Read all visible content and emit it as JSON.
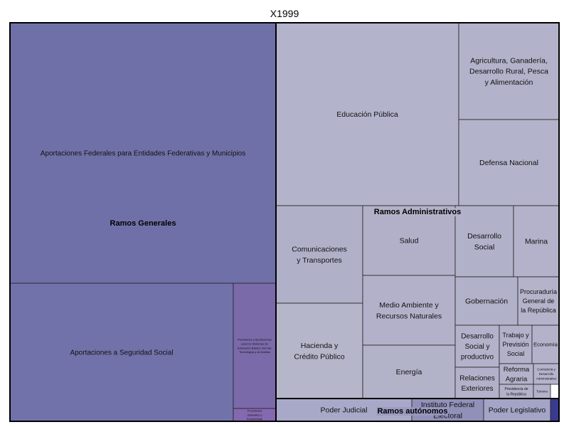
{
  "chart_data": {
    "type": "treemap",
    "title": "X1999",
    "groups": [
      {
        "name": "Ramos Generales",
        "color": "#7070a8",
        "children": [
          {
            "name": "Aportaciones Federales para Entidades Federativas y Municipios",
            "color": "#7070a8",
            "value": 56.7
          },
          {
            "name": "Aportaciones a Seguridad Social",
            "color": "#7272aa",
            "value": 15.1
          },
          {
            "name": "Previsiones y Aportaciones para los Sistemas de Educación Básica, Normal, Tecnológica y de Adultos",
            "color": "#7a6aaa",
            "value": 4.8
          },
          {
            "name": "Provisiones Salariales y Económicas",
            "color": "#8468b0",
            "value": 0.3
          }
        ]
      },
      {
        "name": "Ramos Administrativos",
        "color": "#b3b3c9",
        "children": [
          {
            "name": "Educación Pública",
            "color": "#b3b3cb",
            "value": 11.1
          },
          {
            "name": "Agricultura, Ganadería, Desarrollo Rural, Pesca y Alimentación",
            "color": "#b2b2ca",
            "value": 4.7
          },
          {
            "name": "Defensa Nacional",
            "color": "#b3b3cb",
            "value": 4.2
          },
          {
            "name": "Comunicaciones y Transportes",
            "color": "#b0b0c8",
            "value": 3.2
          },
          {
            "name": "Hacienda y Crédito Público",
            "color": "#b6b6ca",
            "value": 3.2
          },
          {
            "name": "Salud",
            "color": "#b2b0c8",
            "value": 2.5
          },
          {
            "name": "Medio Ambiente y Recursos Naturales",
            "color": "#b3b1c9",
            "value": 2.3
          },
          {
            "name": "Energía",
            "color": "#b2b2c9",
            "value": 2.0
          },
          {
            "name": "Desarrollo Social",
            "color": "#b1b1c9",
            "value": 1.5
          },
          {
            "name": "Marina",
            "color": "#b4b2ca",
            "value": 1.2
          },
          {
            "name": "Gobernación",
            "color": "#b1b1c9",
            "value": 1.0
          },
          {
            "name": "Procuraduría General de la República",
            "color": "#b5b3cb",
            "value": 0.7
          },
          {
            "name": "Desarrollo Social y productivo",
            "color": "#b2b2ca",
            "value": 0.6
          },
          {
            "name": "Trabajo y Previsión Social",
            "color": "#b3b1ca",
            "value": 0.4
          },
          {
            "name": "Economía",
            "color": "#b4b2ca",
            "value": 0.4
          },
          {
            "name": "Relaciones Exteriores",
            "color": "#b1b1c9",
            "value": 0.5
          },
          {
            "name": "Reforma Agraria",
            "color": "#b4b2ca",
            "value": 0.3
          },
          {
            "name": "Contraloría y Desarrollo Administrativo",
            "color": "#b5b3cb",
            "value": 0.2
          },
          {
            "name": "Presidencia de la República",
            "color": "#b2b2ca",
            "value": 0.1
          },
          {
            "name": "Turismo",
            "color": "#b4b2ca",
            "value": 0.1
          }
        ]
      },
      {
        "name": "Ramos autónomos",
        "color": "#9a9ac0",
        "children": [
          {
            "name": "Poder Judicial",
            "color": "#a8a8c8",
            "value": 1.3
          },
          {
            "name": "Instituto Federal Electoral",
            "color": "#9090b8",
            "value": 0.7
          },
          {
            "name": "Poder Legislativo",
            "color": "#a4a4c6",
            "value": 0.7
          },
          {
            "name": "",
            "color": "#3a3a90",
            "value": 0.05
          }
        ]
      }
    ]
  }
}
